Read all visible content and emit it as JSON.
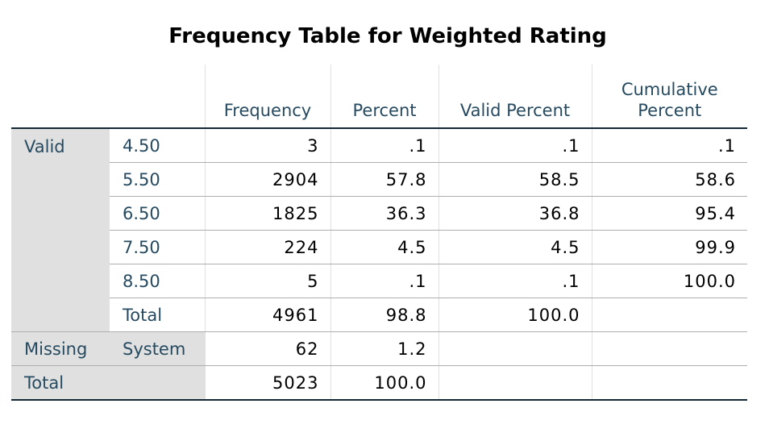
{
  "title": "Frequency Table for Weighted Rating",
  "headers": {
    "frequency": "Frequency",
    "percent": "Percent",
    "valid_percent": "Valid Percent",
    "cumulative_percent_line1": "Cumulative",
    "cumulative_percent_line2": "Percent"
  },
  "groups": {
    "valid": "Valid",
    "missing": "Missing",
    "total": "Total"
  },
  "valid_rows": [
    {
      "label": "4.50",
      "frequency": "3",
      "percent": ".1",
      "valid_percent": ".1",
      "cumulative_percent": ".1"
    },
    {
      "label": "5.50",
      "frequency": "2904",
      "percent": "57.8",
      "valid_percent": "58.5",
      "cumulative_percent": "58.6"
    },
    {
      "label": "6.50",
      "frequency": "1825",
      "percent": "36.3",
      "valid_percent": "36.8",
      "cumulative_percent": "95.4"
    },
    {
      "label": "7.50",
      "frequency": "224",
      "percent": "4.5",
      "valid_percent": "4.5",
      "cumulative_percent": "99.9"
    },
    {
      "label": "8.50",
      "frequency": "5",
      "percent": ".1",
      "valid_percent": ".1",
      "cumulative_percent": "100.0"
    },
    {
      "label": "Total",
      "frequency": "4961",
      "percent": "98.8",
      "valid_percent": "100.0",
      "cumulative_percent": ""
    }
  ],
  "missing_row": {
    "label": "System",
    "frequency": "62",
    "percent": "1.2",
    "valid_percent": "",
    "cumulative_percent": ""
  },
  "total_row": {
    "frequency": "5023",
    "percent": "100.0",
    "valid_percent": "",
    "cumulative_percent": ""
  }
}
